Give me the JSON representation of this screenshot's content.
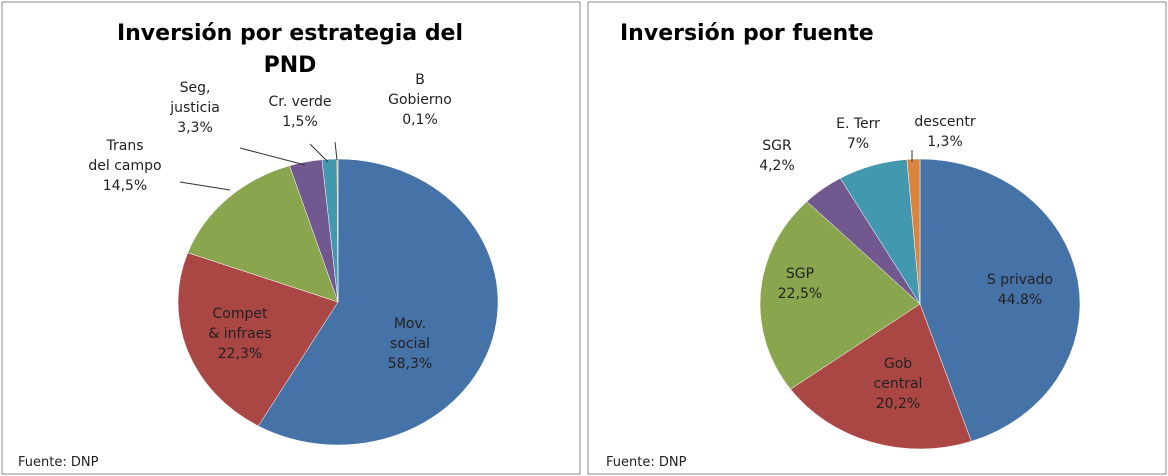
{
  "chart_data": [
    {
      "type": "pie",
      "title": "Inversión por estrategia del PND",
      "categories": [
        "Mov. social",
        "Compet & infraes",
        "Trans del campo",
        "Seg, justicia",
        "Cr. verde",
        "B Gobierno"
      ],
      "values": [
        58.3,
        22.3,
        14.5,
        3.3,
        1.5,
        0.1
      ],
      "value_labels": [
        "58,3%",
        "22,3%",
        "14,5%",
        "3,3%",
        "1,5%",
        "0,1%"
      ],
      "colors": [
        "#4572a7",
        "#aa4643",
        "#89a54e",
        "#71588f",
        "#4198af",
        "#db843d"
      ],
      "note": "Fuente: DNP"
    },
    {
      "type": "pie",
      "title": "Inversión por fuente",
      "categories": [
        "S privado",
        "Gob central",
        "SGP",
        "SGR",
        "E. Terr",
        "descentr"
      ],
      "values": [
        44.8,
        20.2,
        22.5,
        4.2,
        7,
        1.3
      ],
      "value_labels": [
        "44.8%",
        "20,2%",
        "22,5%",
        "4,2%",
        "7%",
        "1,3%"
      ],
      "colors": [
        "#4572a7",
        "#aa4643",
        "#89a54e",
        "#71588f",
        "#4198af",
        "#db843d"
      ],
      "note": "Fuente: DNP"
    }
  ]
}
